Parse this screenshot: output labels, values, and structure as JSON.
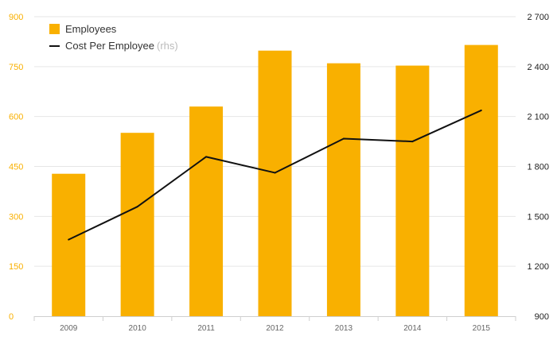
{
  "chart_data": {
    "type": "bar",
    "categories": [
      "2009",
      "2010",
      "2011",
      "2012",
      "2013",
      "2014",
      "2015"
    ],
    "series": [
      {
        "name": "Employees",
        "type": "bar",
        "axis": "left",
        "color": "#f9b000",
        "values": [
          428,
          551,
          630,
          798,
          760,
          753,
          815
        ]
      },
      {
        "name": "Cost Per Employee",
        "type": "line",
        "axis": "right",
        "color": "#111111",
        "values": [
          1360,
          1558,
          1858,
          1762,
          1967,
          1950,
          2137
        ]
      }
    ],
    "y_left": {
      "ticks": [
        "0",
        "150",
        "300",
        "450",
        "600",
        "750",
        "900"
      ],
      "range": [
        0,
        900
      ],
      "tick_color": "#f9b000"
    },
    "y_right": {
      "ticks": [
        "900",
        "1 200",
        "1 500",
        "1 800",
        "2 100",
        "2 400",
        "2 700"
      ],
      "range": [
        900,
        2700
      ],
      "tick_color": "#222222"
    },
    "grid": true,
    "legend_position": "top-left",
    "legend": {
      "employees": "Employees",
      "cost": "Cost Per Employee",
      "rhs_note": "(rhs)"
    }
  }
}
